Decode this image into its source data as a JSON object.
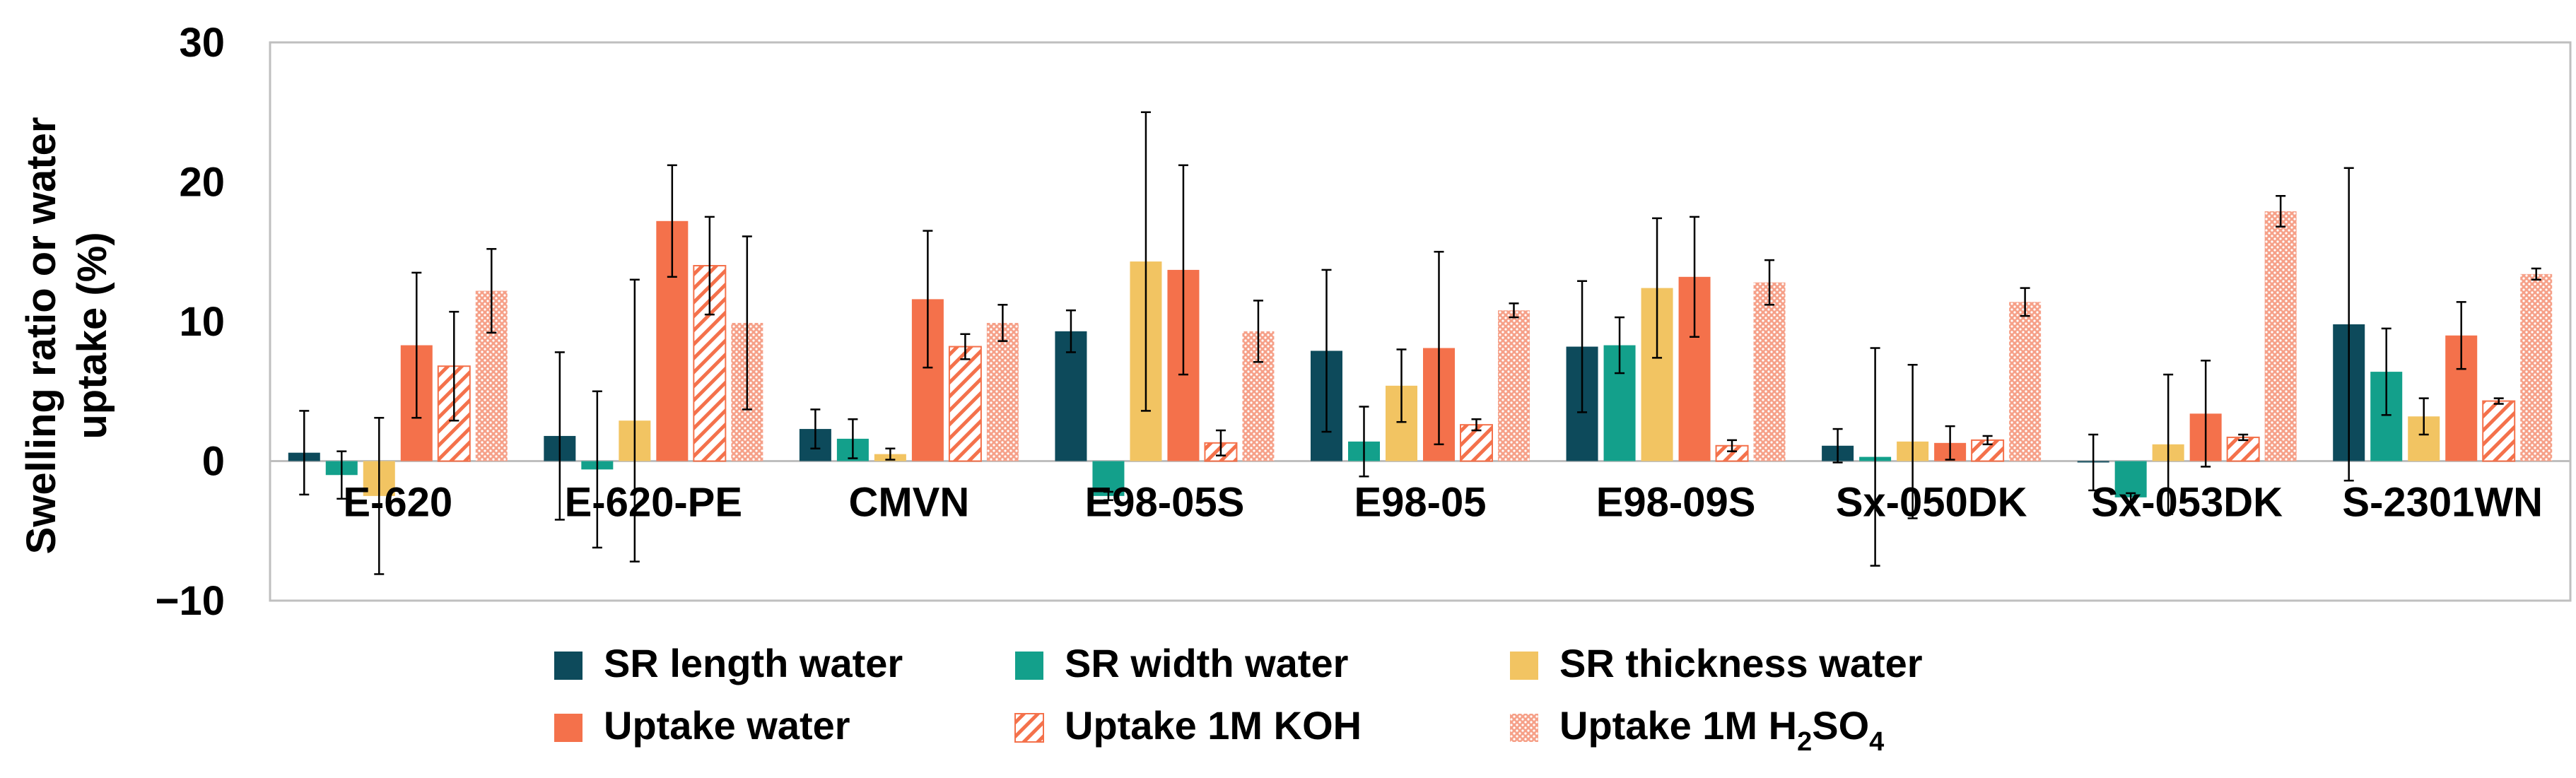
{
  "chart_data": {
    "type": "bar",
    "title": "",
    "xlabel": "",
    "ylabel": "Swelling ratio or water uptake (%)",
    "ylabel_lines": [
      "Swelling ratio or water",
      "uptake (%)"
    ],
    "ylim": [
      -10,
      30
    ],
    "yticks": [
      -10,
      0,
      10,
      20,
      30
    ],
    "ytick_labels": [
      "−10",
      "0",
      "10",
      "20",
      "30"
    ],
    "grid": false,
    "legend_position": "bottom",
    "categories": [
      "E-620",
      "E-620-PE",
      "CMVN",
      "E98-05S",
      "E98-05",
      "E98-09S",
      "Sx-050DK",
      "Sx-053DK",
      "S-2301WN"
    ],
    "series": [
      {
        "name": "SR length water",
        "color": "#0d4a5b",
        "pattern": "solid",
        "values": [
          0.6,
          1.8,
          2.3,
          9.3,
          7.9,
          8.2,
          1.1,
          -0.1,
          9.8
        ],
        "errors": [
          3.0,
          6.0,
          1.4,
          1.5,
          5.8,
          4.7,
          1.2,
          2.0,
          11.2
        ]
      },
      {
        "name": "SR width water",
        "color": "#13a08b",
        "pattern": "solid",
        "values": [
          -1.0,
          -0.6,
          1.6,
          -2.5,
          1.4,
          8.3,
          0.3,
          -2.6,
          6.4
        ],
        "errors": [
          1.7,
          5.6,
          1.4,
          0.3,
          2.5,
          2.0,
          7.8,
          0.3,
          3.1
        ]
      },
      {
        "name": "SR thickness water",
        "color": "#f2c462",
        "pattern": "solid",
        "values": [
          -2.5,
          2.9,
          0.5,
          14.3,
          5.4,
          12.4,
          1.4,
          1.2,
          3.2
        ],
        "errors": [
          5.6,
          10.1,
          0.4,
          10.7,
          2.6,
          5.0,
          5.5,
          5.0,
          1.3
        ]
      },
      {
        "name": "Uptake water",
        "color": "#f4714b",
        "pattern": "solid",
        "values": [
          8.3,
          17.2,
          11.6,
          13.7,
          8.1,
          13.2,
          1.3,
          3.4,
          9.0
        ],
        "errors": [
          5.2,
          4.0,
          4.9,
          7.5,
          6.9,
          4.3,
          1.2,
          3.8,
          2.4
        ]
      },
      {
        "name": "Uptake 1M KOH",
        "color": "#f4714b",
        "pattern": "diagonal",
        "values": [
          6.8,
          14.0,
          8.2,
          1.3,
          2.6,
          1.1,
          1.5,
          1.7,
          4.3
        ],
        "errors": [
          3.9,
          3.5,
          0.9,
          0.9,
          0.4,
          0.4,
          0.3,
          0.2,
          0.2
        ]
      },
      {
        "name": "Uptake 1M H₂SO₄",
        "color": "#f4714b",
        "pattern": "dots",
        "values": [
          12.2,
          9.9,
          9.9,
          9.3,
          10.8,
          12.8,
          11.4,
          17.9,
          13.4
        ],
        "errors": [
          3.0,
          6.2,
          1.3,
          2.2,
          0.5,
          1.6,
          1.0,
          1.1,
          0.4
        ]
      }
    ]
  },
  "legend": {
    "items": [
      "SR length water",
      "SR width water",
      "SR thickness water",
      "Uptake water",
      "Uptake 1M KOH"
    ],
    "last_prefix": "Uptake 1M H",
    "last_sub1": "2",
    "last_mid": "SO",
    "last_sub2": "4"
  }
}
